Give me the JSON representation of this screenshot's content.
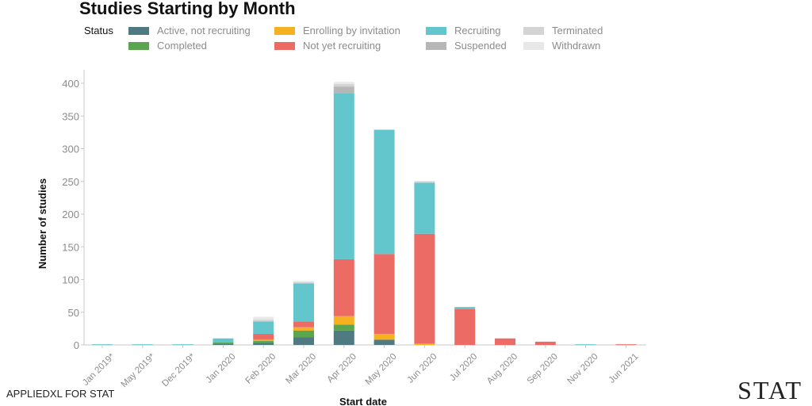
{
  "chart_data": {
    "type": "bar",
    "stacked": true,
    "title": "Studies Starting by Month",
    "xlabel": "Start date",
    "ylabel": "Number of studies",
    "legend_title": "Status",
    "legend_position": "top",
    "ylim": [
      0,
      410
    ],
    "yticks": [
      0,
      50,
      100,
      150,
      200,
      250,
      300,
      350,
      400
    ],
    "grid": false,
    "categories": [
      "Jan 2019*",
      "May 2019*",
      "Dec 2019*",
      "Jan 2020",
      "Feb 2020",
      "Mar 2020",
      "Apr 2020",
      "May 2020",
      "Jun 2020",
      "Jul 2020",
      "Aug 2020",
      "Sep 2020",
      "Nov 2020",
      "Jun 2021"
    ],
    "series": [
      {
        "name": "Active, not recruiting",
        "color": "#4f7a82",
        "values": [
          0,
          0,
          0,
          2,
          3,
          12,
          22,
          8,
          0,
          0,
          0,
          0,
          0,
          0
        ]
      },
      {
        "name": "Completed",
        "color": "#5aa64e",
        "values": [
          0,
          0,
          0,
          2,
          3,
          10,
          9,
          0,
          0,
          0,
          0,
          0,
          0,
          0
        ]
      },
      {
        "name": "Enrolling by invitation",
        "color": "#f6b120",
        "values": [
          0,
          0,
          0,
          0,
          2,
          5,
          13,
          9,
          2,
          0,
          0,
          0,
          0,
          0
        ]
      },
      {
        "name": "Not yet recruiting",
        "color": "#ec6b65",
        "values": [
          0,
          0,
          0,
          0,
          9,
          9,
          87,
          122,
          168,
          55,
          10,
          5,
          0,
          1
        ]
      },
      {
        "name": "Recruiting",
        "color": "#63c6cc",
        "values": [
          1,
          1,
          1,
          6,
          19,
          58,
          254,
          190,
          78,
          3,
          0,
          0,
          1,
          0
        ]
      },
      {
        "name": "Suspended",
        "color": "#b7b7b7",
        "values": [
          0,
          0,
          0,
          0,
          0,
          0,
          10,
          0,
          0,
          0,
          0,
          0,
          0,
          0
        ]
      },
      {
        "name": "Terminated",
        "color": "#d4d4d4",
        "values": [
          0,
          0,
          0,
          0,
          3,
          2,
          4,
          0,
          2,
          0,
          0,
          0,
          0,
          0
        ]
      },
      {
        "name": "Withdrawn",
        "color": "#e8e8e8",
        "values": [
          0,
          0,
          0,
          0,
          4,
          2,
          3,
          0,
          1,
          0,
          0,
          0,
          0,
          0
        ]
      }
    ]
  },
  "footer": {
    "credit": "APPLIEDXL FOR STAT",
    "logo": "STAT"
  }
}
